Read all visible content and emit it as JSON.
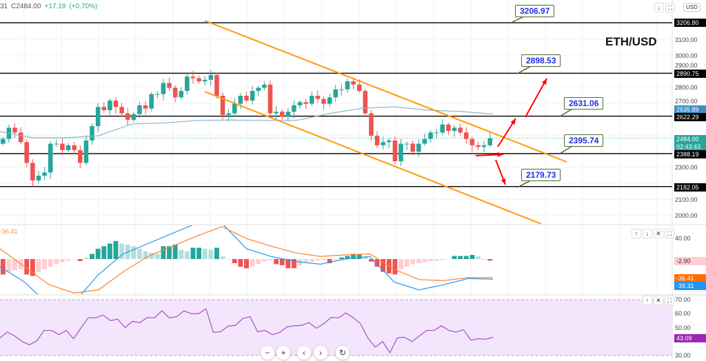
{
  "header": {
    "partial_label": "31",
    "close": "C2484.00",
    "change": "+17.19",
    "change_pct": "(+0.70%)"
  },
  "symbol_title": "ETH/USD",
  "currency_button": "USD",
  "price_axis": {
    "ticks": [
      "3100.00",
      "3000.00",
      "2900.00",
      "2800.00",
      "2700.00",
      "2300.00",
      "2100.00",
      "2000.00"
    ]
  },
  "levels": [
    "3206.80",
    "2890.75",
    "2622.29",
    "2388.19",
    "2182.05"
  ],
  "callouts": [
    "3206.97",
    "2898.53",
    "2631.06",
    "2395.74",
    "2179.73"
  ],
  "price_tags": {
    "ma": "2635.89",
    "last": "2484.00",
    "countdown": "02:43:43"
  },
  "macd": {
    "legend": "-36.41",
    "ticks": [
      "40.00"
    ],
    "histogram_tag": "-2.90",
    "signal_tag": "-36.41",
    "macd_tag": "-39.31"
  },
  "rsi": {
    "ticks": [
      "70.00",
      "60.00",
      "50.00",
      "30.00"
    ],
    "tag": "43.09"
  },
  "nav_buttons": {
    "zoom_out": "−",
    "zoom_in": "+",
    "left": "‹",
    "right": "›",
    "reset": "↻"
  },
  "pane_buttons": {
    "down": "↓",
    "maximize": "⛶",
    "up": "↑",
    "close": "✕"
  },
  "colors": {
    "up": "#26a69a",
    "down": "#ef5350",
    "channel": "#ff9800",
    "arrows": "#ff0000",
    "ma": "#8fb4cf",
    "macd": "#2196f3",
    "signal": "#ff7f27",
    "rsi": "#a74fc4",
    "rsi_band": "#f3e5fc"
  },
  "chart_data": {
    "type": "candlestick",
    "closes": [
      2480,
      2550,
      2520,
      2460,
      2330,
      2220,
      2250,
      2270,
      2450,
      2450,
      2410,
      2440,
      2410,
      2330,
      2470,
      2560,
      2680,
      2660,
      2720,
      2680,
      2640,
      2600,
      2635,
      2690,
      2670,
      2760,
      2760,
      2830,
      2800,
      2740,
      2780,
      2870,
      2860,
      2840,
      2850,
      2880,
      2750,
      2630,
      2640,
      2700,
      2750,
      2720,
      2780,
      2800,
      2820,
      2640,
      2650,
      2620,
      2650,
      2690,
      2710,
      2700,
      2750,
      2730,
      2700,
      2740,
      2790,
      2790,
      2840,
      2820,
      2780,
      2640,
      2500,
      2440,
      2460,
      2470,
      2340,
      2450,
      2450,
      2400,
      2450,
      2480,
      2520,
      2520,
      2570,
      2530,
      2550,
      2520,
      2480,
      2440,
      2430,
      2440,
      2484
    ],
    "ma": [
      2526,
      2487,
      2487,
      2500,
      2573,
      2580,
      2595,
      2598,
      2595,
      2595,
      2638,
      2672,
      2681,
      2660,
      2652,
      2635.89
    ],
    "macd_histogram": [
      -30,
      -25,
      -22,
      -20,
      -30,
      -33,
      -25,
      -20,
      -15,
      -10,
      -6,
      -3,
      -1,
      -4,
      3,
      10,
      20,
      25,
      30,
      35,
      30,
      28,
      25,
      20,
      15,
      12,
      10,
      25,
      25,
      28,
      18,
      15,
      22,
      22,
      20,
      18,
      22,
      5,
      0,
      -8,
      -15,
      -18,
      -15,
      -10,
      -5,
      -3,
      -10,
      -12,
      -18,
      -18,
      -12,
      -8,
      -5,
      -3,
      -2,
      -8,
      -2,
      3,
      6,
      10,
      10,
      5,
      -5,
      -15,
      -25,
      -28,
      -30,
      -20,
      -15,
      -10,
      -8,
      -6,
      -4,
      -3,
      -2,
      0,
      6,
      6,
      6,
      8,
      5,
      -2,
      -3
    ],
    "macd_line": [
      -15,
      -45,
      -90,
      -85,
      -30,
      10,
      30,
      50,
      70,
      70,
      20,
      5,
      -5,
      -10,
      0,
      5,
      -45,
      -60,
      -50,
      -38,
      -39.31
    ],
    "signal_line": [
      20,
      -15,
      -50,
      -66,
      -60,
      -25,
      5,
      25,
      45,
      63,
      40,
      25,
      12,
      5,
      8,
      10,
      -20,
      -40,
      -42,
      -36,
      -36.41
    ],
    "rsi": [
      42.6,
      46.8,
      44,
      40,
      37.7,
      40.5,
      48,
      48,
      45,
      47.9,
      42,
      49.7,
      57,
      57,
      59,
      55,
      56,
      50,
      54.5,
      53.5,
      57.2,
      57,
      62,
      57,
      57.8,
      62,
      60,
      60,
      63.4,
      46.6,
      47,
      51,
      51.6,
      56.6,
      57.8,
      47,
      48,
      45,
      46.4,
      50.5,
      51.3,
      51.6,
      53.6,
      49.5,
      52.8,
      57.2,
      57,
      60.5,
      57.2,
      52.8,
      42.6,
      36,
      40,
      32,
      42.6,
      43,
      40,
      44,
      48,
      48,
      51.3,
      48,
      46.8,
      48.5,
      41,
      42,
      41.6,
      43.09
    ],
    "rsi_band": [
      30,
      70
    ]
  }
}
